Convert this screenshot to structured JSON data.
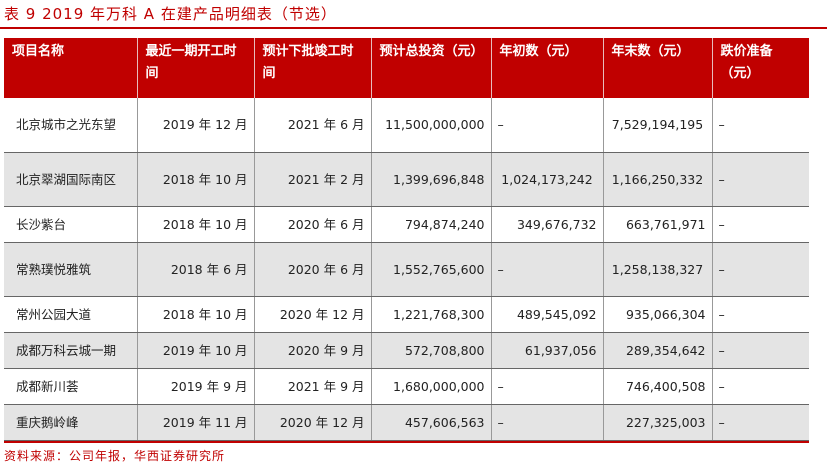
{
  "title": "表 9 2019 年万科 A 在建产品明细表（节选）",
  "table": {
    "headers": [
      "项目名称",
      "最近一期开工时间",
      "预计下批竣工时间",
      "预计总投资（元）",
      "年初数（元）",
      "年末数（元）",
      "跌价准备（元）"
    ],
    "rows": [
      [
        "北京城市之光东望",
        "2019 年 12 月",
        "2021 年 6 月",
        "11,500,000,000",
        "–",
        "7,529,194,195",
        "–"
      ],
      [
        "北京翠湖国际南区",
        "2018 年 10 月",
        "2021 年 2 月",
        "1,399,696,848",
        "1,024,173,242",
        "1,166,250,332",
        "–"
      ],
      [
        "长沙紫台",
        "2018 年 10 月",
        "2020 年 6 月",
        "794,874,240",
        "349,676,732",
        "663,761,971",
        "–"
      ],
      [
        "常熟璞悦雅筑",
        "2018 年 6 月",
        "2020 年 6 月",
        "1,552,765,600",
        "–",
        "1,258,138,327",
        "–"
      ],
      [
        "常州公园大道",
        "2018 年 10 月",
        "2020 年 12 月",
        "1,221,768,300",
        "489,545,092",
        "935,066,304",
        "–"
      ],
      [
        "成都万科云城一期",
        "2019 年 10 月",
        "2020 年 9 月",
        "572,708,800",
        "61,937,056",
        "289,354,642",
        "–"
      ],
      [
        "成都新川荟",
        "2019 年 9 月",
        "2021 年 9 月",
        "1,680,000,000",
        "–",
        "746,400,508",
        "–"
      ],
      [
        "重庆鹅岭峰",
        "2019 年 11 月",
        "2020 年 12 月",
        "457,606,563",
        "–",
        "227,325,003",
        "–"
      ]
    ]
  },
  "source": "资料来源：公司年报，华西证券研究所",
  "colors": {
    "accent": "#c00000",
    "row_shade": "#e4e4e4"
  }
}
